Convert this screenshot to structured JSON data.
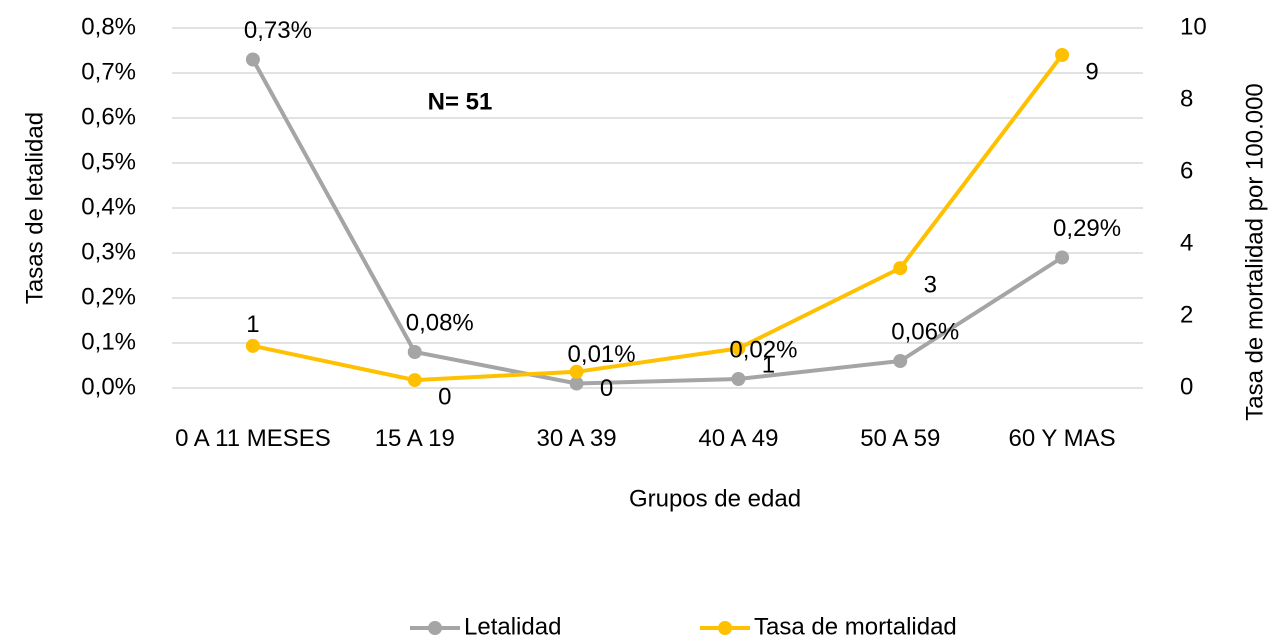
{
  "chart_data": {
    "type": "line",
    "annotation": "N= 51",
    "x_label": "Grupos de edad",
    "y_label": "Tasas de letalidad",
    "y2_label": "Tasa de mortalidad por 100.000",
    "categories": [
      "0 A 11 MESES",
      "15 A 19",
      "30 A 39",
      "40 A 49",
      "50 A 59",
      "60 Y MAS"
    ],
    "series": [
      {
        "name": "Letalidad",
        "color": "#a5a5a5",
        "values": [
          0.73,
          0.08,
          0.01,
          0.02,
          0.06,
          0.29
        ],
        "value_labels": [
          "0,73%",
          "0,08%",
          "0,01%",
          "0,02%",
          "0,06%",
          "0,29%"
        ]
      },
      {
        "name": "Tasa de mortalidad",
        "color": "#ffc000",
        "axis": "y2",
        "values": [
          1.17,
          0.22,
          0.45,
          1.1,
          3.33,
          9.25
        ],
        "value_labels": [
          "1",
          "0",
          "0",
          "1",
          "3",
          "9"
        ]
      }
    ],
    "ylim": [
      0,
      0.8
    ],
    "yticks": [
      {
        "value": 0,
        "label": "0,0%"
      },
      {
        "value": 0.1,
        "label": "0,1%"
      },
      {
        "value": 0.2,
        "label": "0,2%"
      },
      {
        "value": 0.3,
        "label": "0,3%"
      },
      {
        "value": 0.4,
        "label": "0,4%"
      },
      {
        "value": 0.5,
        "label": "0,5%"
      },
      {
        "value": 0.6,
        "label": "0,6%"
      },
      {
        "value": 0.7,
        "label": "0,7%"
      },
      {
        "value": 0.8,
        "label": "0,8%"
      }
    ],
    "y2lim": [
      0,
      10
    ],
    "y2ticks": [
      0,
      2,
      4,
      6,
      8,
      10
    ],
    "grid": true,
    "legend": "bottom"
  }
}
